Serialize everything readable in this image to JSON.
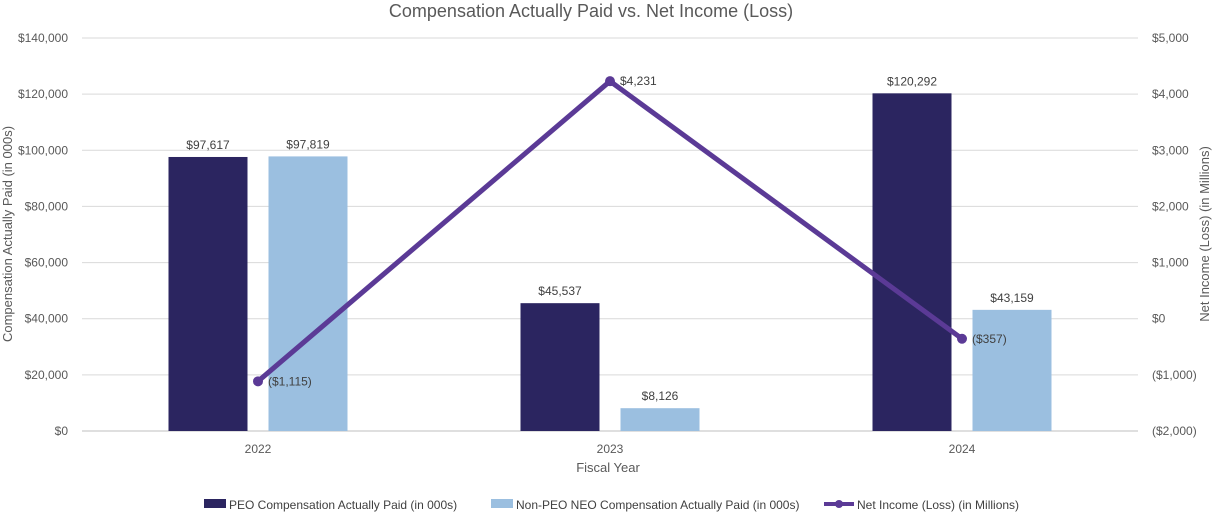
{
  "chart_data": {
    "type": "bar",
    "title": "Compensation Actually Paid vs. Net Income (Loss)",
    "xlabel": "Fiscal Year",
    "ylabel_left": "Compensation Actually Paid (in 000s)",
    "ylabel_right": "Net Income (Loss) (in Millions)",
    "categories": [
      "2022",
      "2023",
      "2024"
    ],
    "ylim_left": [
      0,
      140000
    ],
    "ylim_right": [
      -2000,
      5000
    ],
    "left_ticks": [
      "$0",
      "$20,000",
      "$40,000",
      "$60,000",
      "$80,000",
      "$100,000",
      "$120,000",
      "$140,000"
    ],
    "right_ticks": [
      "($2,000)",
      "($1,000)",
      "$0",
      "$1,000",
      "$2,000",
      "$3,000",
      "$4,000",
      "$5,000"
    ],
    "grid": true,
    "legend_position": "bottom",
    "series": [
      {
        "name": "PEO Compensation Actually Paid (in 000s)",
        "type": "bar",
        "axis": "left",
        "color": "#2b2560",
        "values": [
          97617,
          45537,
          120292
        ],
        "labels": [
          "$97,617",
          "$45,537",
          "$120,292"
        ]
      },
      {
        "name": "Non-PEO NEO Compensation Actually Paid (in 000s)",
        "type": "bar",
        "axis": "left",
        "color": "#9bbfe0",
        "values": [
          97819,
          8126,
          43159
        ],
        "labels": [
          "$97,819",
          "$8,126",
          "$43,159"
        ]
      },
      {
        "name": "Net Income (Loss) (in Millions)",
        "type": "line",
        "axis": "right",
        "color": "#5b3a96",
        "values": [
          -1115,
          4231,
          -357
        ],
        "labels": [
          "($1,115)",
          "$4,231",
          "($357)"
        ]
      }
    ]
  }
}
